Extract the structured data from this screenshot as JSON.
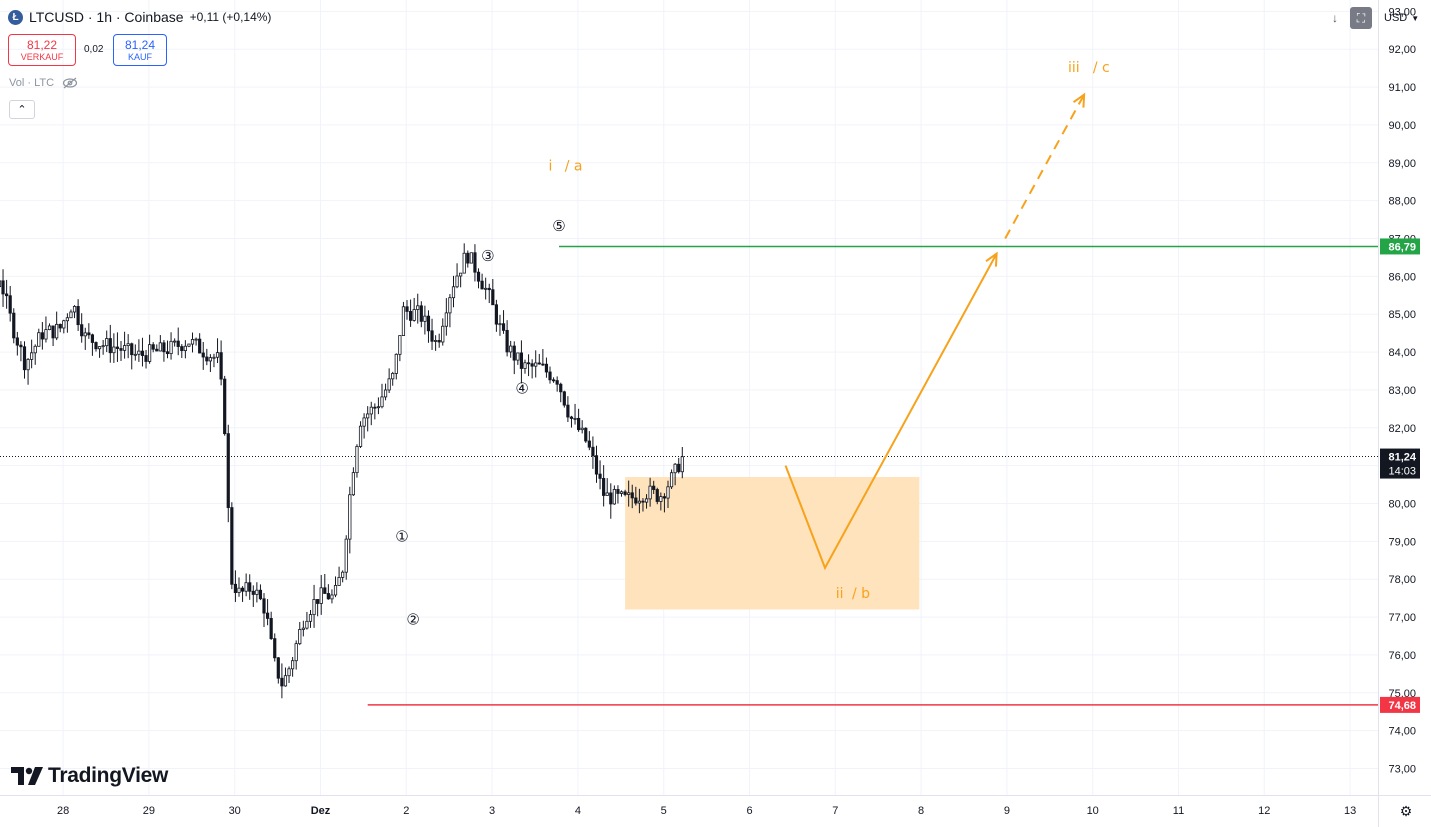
{
  "header": {
    "symbol_line": "LTCUSD · 1h · Coinbase",
    "change": "+0,11 (+0,14%)",
    "sell_price": "81,22",
    "sell_label": "VERKAUF",
    "spread": "0,02",
    "buy_price": "81,24",
    "buy_label": "KAUF",
    "volume_label": "Vol · LTC"
  },
  "currency": "USD",
  "logo": "TradingView",
  "chart_data": {
    "type": "candlestick",
    "symbol": "LTCUSD",
    "interval": "1h",
    "exchange": "Coinbase",
    "x_ticks": [
      "28",
      "29",
      "30",
      "Dez",
      "2",
      "3",
      "4",
      "5",
      "6",
      "7",
      "8",
      "9",
      "10",
      "11",
      "12",
      "13"
    ],
    "y_ticks": [
      "93,00",
      "92,00",
      "91,00",
      "90,00",
      "89,00",
      "88,00",
      "87,00",
      "86,00",
      "85,00",
      "84,00",
      "83,00",
      "82,00",
      "81,00",
      "80,00",
      "79,00",
      "78,00",
      "77,00",
      "76,00",
      "75,00",
      "74,00",
      "73,00"
    ],
    "ylim": [
      72.3,
      93.3
    ],
    "x_range_days": [
      27.3,
      13.35
    ],
    "current_price": {
      "value": "81,24",
      "countdown": "14:03",
      "y": 81.24,
      "color": "#131722"
    },
    "levels": [
      {
        "value": "86,79",
        "y": 86.79,
        "start_day": 3.78,
        "color": "#22a447"
      },
      {
        "value": "74,68",
        "y": 74.68,
        "start_day": 1.55,
        "color": "#f23645"
      }
    ],
    "price_path": [
      [
        27.3,
        86.3
      ],
      [
        27.5,
        87.3
      ],
      [
        27.7,
        87.4
      ],
      [
        27.85,
        86.5
      ],
      [
        28.0,
        85.6
      ],
      [
        28.15,
        85.1
      ],
      [
        28.3,
        86.0
      ],
      [
        28.45,
        84.7
      ],
      [
        28.6,
        83.7
      ],
      [
        28.8,
        84.5
      ],
      [
        29.0,
        84.6
      ],
      [
        29.15,
        85.3
      ],
      [
        29.3,
        84.4
      ],
      [
        29.5,
        84.2
      ],
      [
        29.7,
        84.1
      ],
      [
        29.9,
        83.9
      ],
      [
        30.1,
        84.0
      ],
      [
        30.3,
        84.1
      ],
      [
        30.5,
        84.3
      ],
      [
        30.7,
        84.0
      ],
      [
        30.85,
        83.8
      ],
      [
        30.92,
        82.3
      ],
      [
        31.0,
        78.0
      ],
      [
        31.1,
        77.6
      ],
      [
        31.25,
        77.8
      ],
      [
        31.4,
        77.2
      ],
      [
        31.5,
        75.8
      ],
      [
        31.6,
        75.2
      ],
      [
        31.7,
        75.8
      ],
      [
        31.85,
        77.0
      ],
      [
        32.0,
        77.5
      ],
      [
        32.1,
        77.6
      ],
      [
        32.2,
        77.5
      ],
      [
        32.3,
        78.3
      ],
      [
        32.4,
        80.6
      ],
      [
        32.5,
        82.2
      ],
      [
        32.7,
        82.6
      ],
      [
        32.9,
        83.4
      ],
      [
        33.0,
        85.1
      ],
      [
        33.2,
        85.0
      ],
      [
        33.4,
        84.2
      ],
      [
        33.5,
        85.2
      ],
      [
        33.6,
        85.9
      ],
      [
        33.75,
        86.6
      ],
      [
        33.85,
        86.2
      ],
      [
        34.0,
        85.5
      ],
      [
        34.2,
        84.2
      ],
      [
        34.4,
        83.6
      ],
      [
        34.6,
        83.6
      ],
      [
        34.8,
        83.3
      ],
      [
        34.95,
        82.3
      ],
      [
        35.15,
        81.6
      ],
      [
        35.35,
        80.2
      ],
      [
        35.6,
        80.1
      ],
      [
        35.85,
        80.3
      ],
      [
        36.0,
        80.2
      ],
      [
        36.15,
        80.7
      ],
      [
        36.25,
        81.2
      ]
    ],
    "zone": {
      "x": [
        4.55,
        7.98
      ],
      "y": [
        77.2,
        80.7
      ],
      "color": "#ffe3bc"
    },
    "projection": {
      "color": "#f7a21b",
      "solid": [
        [
          6.42,
          81.0
        ],
        [
          6.88,
          78.3
        ],
        [
          8.88,
          86.6
        ]
      ],
      "dashed": [
        [
          8.98,
          87.0
        ],
        [
          9.9,
          90.8
        ]
      ]
    },
    "wave_labels": [
      {
        "text": "①",
        "day": 1.95,
        "y": 79.0,
        "color": "#131722"
      },
      {
        "text": "②",
        "day": 2.08,
        "y": 76.8,
        "color": "#131722"
      },
      {
        "text": "③",
        "day": 2.95,
        "y": 86.4,
        "color": "#131722"
      },
      {
        "text": "④",
        "day": 3.35,
        "y": 82.9,
        "color": "#131722"
      },
      {
        "text": "⑤",
        "day": 3.78,
        "y": 87.2,
        "color": "#131722"
      },
      {
        "text": "i",
        "day": 3.68,
        "y": 88.8,
        "color": "#f7a21b"
      },
      {
        "text": "/ a",
        "day": 3.95,
        "y": 88.8,
        "color": "#f7a21b"
      },
      {
        "text": "ii",
        "day": 7.05,
        "y": 77.5,
        "color": "#f7a21b"
      },
      {
        "text": "/ b",
        "day": 7.3,
        "y": 77.5,
        "color": "#f7a21b"
      },
      {
        "text": "iii",
        "day": 9.78,
        "y": 91.4,
        "color": "#f7a21b"
      },
      {
        "text": "/ c",
        "day": 10.1,
        "y": 91.4,
        "color": "#f7a21b"
      }
    ]
  }
}
